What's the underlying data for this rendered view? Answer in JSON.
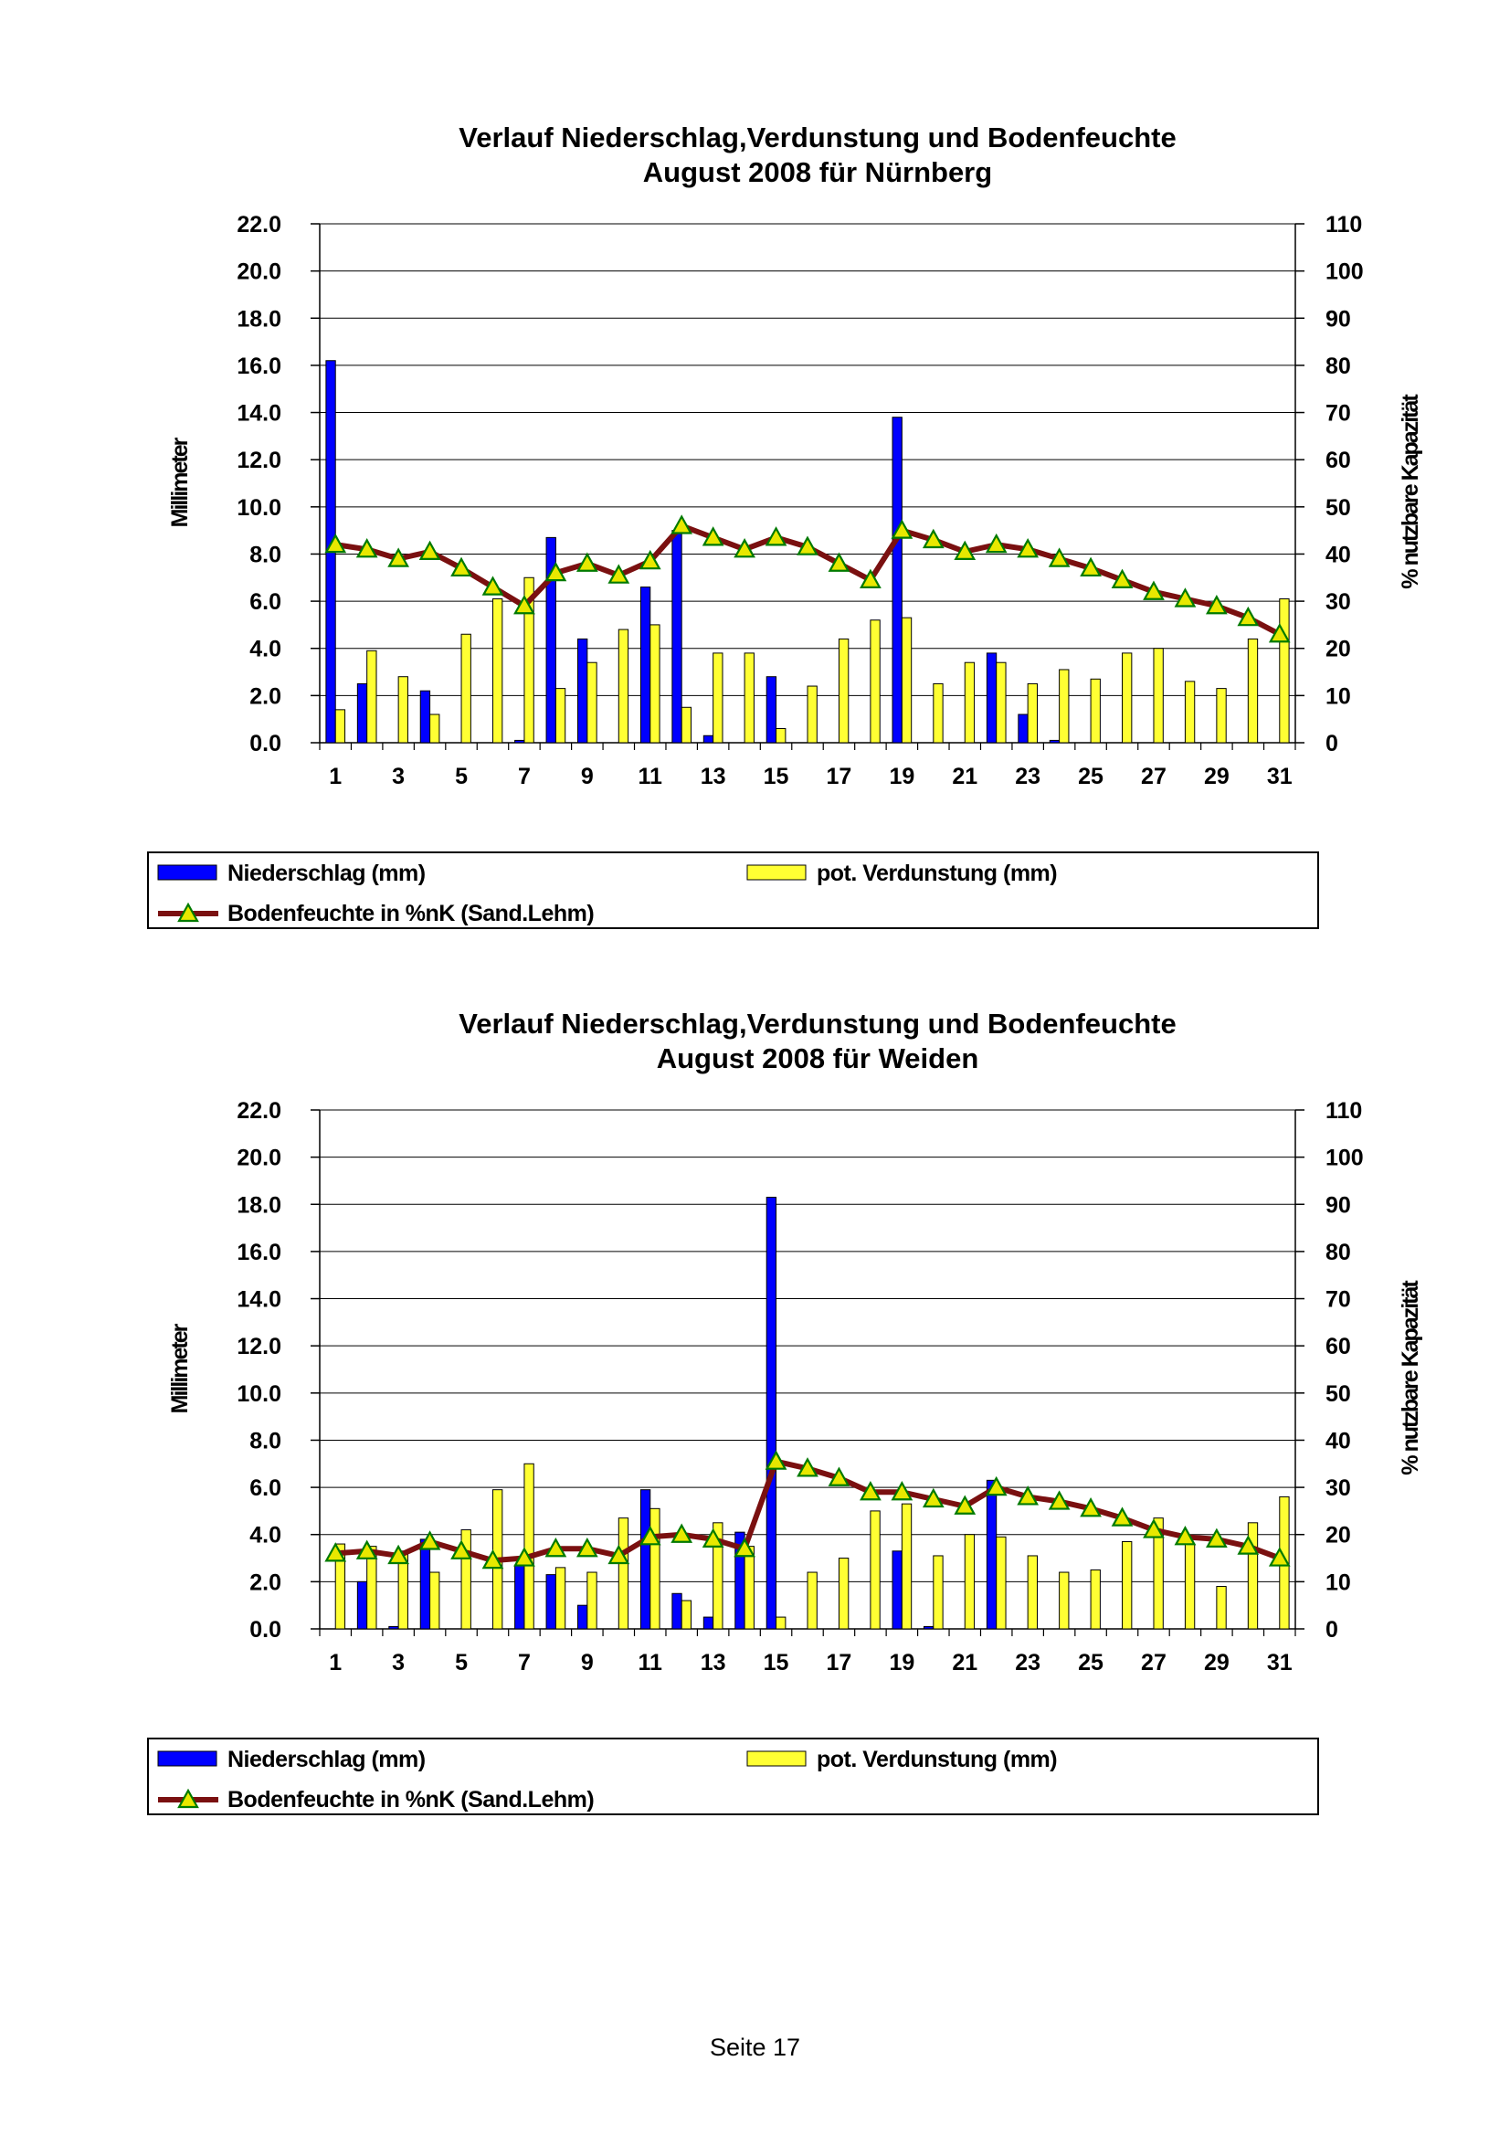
{
  "page": {
    "footer": "Seite 17"
  },
  "chart_data": [
    {
      "type": "bar",
      "title_lines": [
        "Verlauf Niederschlag,Verdunstung und Bodenfeuchte",
        "August 2008 für Nürnberg"
      ],
      "ylabel": "Millimeter",
      "y2label": "% nutzbare Kapazität",
      "ylim": [
        0,
        22
      ],
      "ytick_step": 2,
      "y2lim": [
        0,
        110
      ],
      "y2tick_step": 10,
      "x": [
        1,
        2,
        3,
        4,
        5,
        6,
        7,
        8,
        9,
        10,
        11,
        12,
        13,
        14,
        15,
        16,
        17,
        18,
        19,
        20,
        21,
        22,
        23,
        24,
        25,
        26,
        27,
        28,
        29,
        30,
        31
      ],
      "xtick_labels": [
        "1",
        "3",
        "5",
        "7",
        "9",
        "11",
        "13",
        "15",
        "17",
        "19",
        "21",
        "23",
        "25",
        "27",
        "29",
        "31"
      ],
      "legend_position": "bottom",
      "series": [
        {
          "name": "Niederschlag (mm)",
          "kind": "bar",
          "axis": "left",
          "color": "#0000ff",
          "values": [
            16.2,
            2.5,
            0,
            2.2,
            0,
            0,
            0.1,
            8.7,
            4.4,
            0,
            6.6,
            9.0,
            0.3,
            0,
            2.8,
            0,
            0,
            0,
            13.8,
            0,
            0,
            3.8,
            1.2,
            0.1,
            0,
            0,
            0,
            0,
            0,
            0,
            0
          ]
        },
        {
          "name": "pot. Verdunstung (mm)",
          "kind": "bar",
          "axis": "left",
          "color": "#ffff33",
          "values": [
            1.4,
            3.9,
            2.8,
            1.2,
            4.6,
            6.1,
            7.0,
            2.3,
            3.4,
            4.8,
            5.0,
            1.5,
            3.8,
            3.8,
            0.6,
            2.4,
            4.4,
            5.2,
            5.3,
            2.5,
            3.4,
            3.4,
            2.5,
            3.1,
            2.7,
            3.8,
            4.0,
            2.6,
            2.3,
            4.4,
            6.1
          ]
        },
        {
          "name": "Bodenfeuchte in %nK (Sand.Lehm)",
          "kind": "line",
          "axis": "right",
          "color": "#7a1010",
          "marker_color": "#e8e800",
          "values": [
            42,
            41,
            39,
            40.5,
            37,
            33,
            29,
            36,
            38,
            35.5,
            38.5,
            46,
            43.5,
            41,
            43.5,
            41.5,
            38,
            34.5,
            45,
            43,
            40.5,
            42,
            41,
            39,
            37,
            34.5,
            32,
            30.5,
            29,
            26.5,
            23
          ]
        }
      ]
    },
    {
      "type": "bar",
      "title_lines": [
        "Verlauf Niederschlag,Verdunstung und Bodenfeuchte",
        "August 2008 für Weiden"
      ],
      "ylabel": "Millimeter",
      "y2label": "% nutzbare Kapazität",
      "ylim": [
        0,
        22
      ],
      "ytick_step": 2,
      "y2lim": [
        0,
        110
      ],
      "y2tick_step": 10,
      "x": [
        1,
        2,
        3,
        4,
        5,
        6,
        7,
        8,
        9,
        10,
        11,
        12,
        13,
        14,
        15,
        16,
        17,
        18,
        19,
        20,
        21,
        22,
        23,
        24,
        25,
        26,
        27,
        28,
        29,
        30,
        31
      ],
      "xtick_labels": [
        "1",
        "3",
        "5",
        "7",
        "9",
        "11",
        "13",
        "15",
        "17",
        "19",
        "21",
        "23",
        "25",
        "27",
        "29",
        "31"
      ],
      "legend_position": "bottom",
      "series": [
        {
          "name": "Niederschlag (mm)",
          "kind": "bar",
          "axis": "left",
          "color": "#0000ff",
          "values": [
            0,
            2.0,
            0.1,
            3.8,
            0,
            0,
            2.7,
            2.3,
            1.0,
            0,
            5.9,
            1.5,
            0.5,
            4.1,
            18.3,
            0,
            0,
            0,
            3.3,
            0.1,
            0,
            6.3,
            0,
            0,
            0,
            0,
            0,
            0,
            0,
            0,
            0
          ]
        },
        {
          "name": "pot. Verdunstung (mm)",
          "kind": "bar",
          "axis": "left",
          "color": "#ffff33",
          "values": [
            3.6,
            3.5,
            3.3,
            2.4,
            4.2,
            5.9,
            7.0,
            2.6,
            2.4,
            4.7,
            5.1,
            1.2,
            4.5,
            3.5,
            0.5,
            2.4,
            3.0,
            5.0,
            5.3,
            3.1,
            4.0,
            3.9,
            3.1,
            2.4,
            2.5,
            3.7,
            4.7,
            3.6,
            1.8,
            4.5,
            5.6
          ]
        },
        {
          "name": "Bodenfeuchte in %nK (Sand.Lehm)",
          "kind": "line",
          "axis": "right",
          "color": "#7a1010",
          "marker_color": "#e8e800",
          "values": [
            16,
            16.5,
            15.5,
            18.5,
            16.5,
            14.5,
            15,
            17,
            17,
            15.5,
            19.5,
            20,
            19,
            17,
            35.5,
            34,
            32,
            29,
            29,
            27.5,
            26,
            30,
            28,
            27,
            25.5,
            23.5,
            21,
            19.5,
            19,
            17.5,
            15
          ]
        }
      ]
    }
  ]
}
